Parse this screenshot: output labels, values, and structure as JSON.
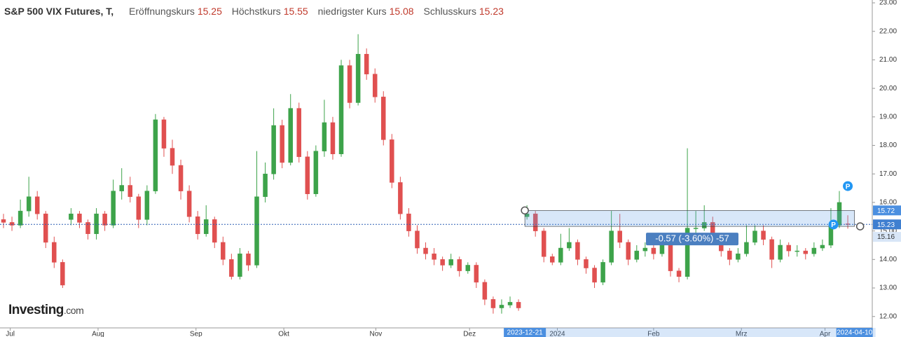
{
  "chart_data": {
    "type": "candlestick",
    "title": "S&P 500 VIX Futures, T,",
    "open_label": "Eröffnungskurs",
    "high_label": "Höchstkurs",
    "low_label": "niedrigster Kurs",
    "close_label": "Schlusskurs",
    "ylim": [
      11.6,
      23.05
    ],
    "yticks": [
      {
        "value": 12,
        "label": "12.00"
      },
      {
        "value": 13,
        "label": "13.00"
      },
      {
        "value": 14,
        "label": "14.00"
      },
      {
        "value": 15,
        "label": "15.00"
      },
      {
        "value": 16,
        "label": "16.00"
      },
      {
        "value": 17,
        "label": "17.00"
      },
      {
        "value": 18,
        "label": "18.00"
      },
      {
        "value": 19,
        "label": "19.00"
      },
      {
        "value": 20,
        "label": "20.00"
      },
      {
        "value": 21,
        "label": "21.00"
      },
      {
        "value": 22,
        "label": "22.00"
      },
      {
        "value": 23,
        "label": "23.00"
      }
    ],
    "xlim": [
      -0.415,
      102.9
    ],
    "xticks": [
      {
        "value": 0.8,
        "label": "Jul"
      },
      {
        "value": 11.2,
        "label": "Aug"
      },
      {
        "value": 22.8,
        "label": "Sep"
      },
      {
        "value": 33.2,
        "label": "Okt"
      },
      {
        "value": 44.1,
        "label": "Nov"
      },
      {
        "value": 55.2,
        "label": "Dez"
      },
      {
        "value": 65.6,
        "label": "2024"
      },
      {
        "value": 77,
        "label": "Feb"
      },
      {
        "value": 87.4,
        "label": "Mrz"
      },
      {
        "value": 97.3,
        "label": "Apr"
      }
    ],
    "up_color": "#3da34a",
    "down_color": "#e05050",
    "series": [
      {
        "values": [
          [
            15.4,
            15.6,
            15.1,
            15.3
          ],
          [
            15.3,
            15.5,
            15.0,
            15.2
          ],
          [
            15.2,
            16.1,
            15.1,
            15.7
          ],
          [
            15.7,
            16.9,
            15.5,
            16.2
          ],
          [
            16.2,
            16.4,
            15.4,
            15.6
          ],
          [
            15.6,
            15.7,
            14.4,
            14.6
          ],
          [
            14.6,
            14.8,
            13.7,
            13.9
          ],
          [
            13.9,
            14.0,
            13.0,
            13.1
          ],
          [
            15.4,
            15.8,
            15.2,
            15.6
          ],
          [
            15.6,
            15.7,
            15.1,
            15.3
          ],
          [
            15.3,
            15.4,
            14.7,
            14.9
          ],
          [
            14.9,
            15.8,
            14.7,
            15.6
          ],
          [
            15.6,
            15.7,
            15.0,
            15.2
          ],
          [
            15.2,
            16.8,
            15.1,
            16.4
          ],
          [
            16.4,
            17.2,
            16.1,
            16.6
          ],
          [
            16.6,
            16.9,
            16.0,
            16.2
          ],
          [
            16.2,
            16.3,
            15.1,
            15.4
          ],
          [
            15.4,
            16.6,
            15.2,
            16.4
          ],
          [
            16.4,
            19.1,
            16.3,
            18.9
          ],
          [
            18.9,
            19.0,
            17.6,
            17.9
          ],
          [
            17.9,
            18.2,
            17.0,
            17.3
          ],
          [
            17.3,
            17.5,
            16.1,
            16.4
          ],
          [
            16.4,
            16.6,
            15.3,
            15.5
          ],
          [
            15.5,
            15.7,
            14.7,
            14.9
          ],
          [
            14.9,
            15.9,
            14.8,
            15.4
          ],
          [
            15.4,
            15.5,
            14.4,
            14.6
          ],
          [
            14.6,
            14.8,
            13.8,
            14.0
          ],
          [
            14.0,
            14.2,
            13.3,
            13.4
          ],
          [
            13.4,
            14.4,
            13.3,
            14.2
          ],
          [
            14.2,
            14.3,
            13.6,
            13.8
          ],
          [
            13.8,
            17.8,
            13.7,
            16.2
          ],
          [
            16.2,
            17.4,
            16.0,
            17.0
          ],
          [
            17.0,
            19.3,
            16.8,
            18.7
          ],
          [
            18.7,
            18.9,
            17.2,
            17.4
          ],
          [
            17.4,
            19.8,
            17.3,
            19.3
          ],
          [
            19.3,
            19.5,
            17.4,
            17.6
          ],
          [
            17.6,
            17.8,
            16.1,
            16.3
          ],
          [
            16.3,
            18.0,
            16.2,
            17.8
          ],
          [
            17.8,
            19.6,
            17.6,
            18.8
          ],
          [
            18.8,
            19.0,
            17.5,
            17.7
          ],
          [
            17.7,
            21.0,
            17.6,
            20.8
          ],
          [
            20.8,
            21.0,
            19.3,
            19.5
          ],
          [
            19.5,
            21.9,
            19.4,
            21.2
          ],
          [
            21.2,
            21.4,
            20.3,
            20.5
          ],
          [
            20.5,
            20.7,
            19.5,
            19.7
          ],
          [
            19.7,
            19.9,
            18.0,
            18.2
          ],
          [
            18.2,
            18.4,
            16.5,
            16.7
          ],
          [
            16.7,
            16.9,
            15.4,
            15.6
          ],
          [
            15.6,
            15.8,
            14.8,
            15.0
          ],
          [
            15.0,
            15.2,
            14.2,
            14.4
          ],
          [
            14.4,
            14.6,
            14.0,
            14.2
          ],
          [
            14.2,
            14.4,
            13.8,
            14.0
          ],
          [
            14.0,
            14.1,
            13.6,
            13.8
          ],
          [
            13.8,
            14.2,
            13.7,
            14.0
          ],
          [
            14.0,
            14.1,
            13.4,
            13.6
          ],
          [
            13.6,
            13.9,
            13.5,
            13.8
          ],
          [
            13.8,
            13.9,
            13.0,
            13.2
          ],
          [
            13.2,
            13.3,
            12.4,
            12.6
          ],
          [
            12.6,
            12.7,
            12.1,
            12.3
          ],
          [
            12.3,
            12.6,
            12.1,
            12.4
          ],
          [
            12.4,
            12.7,
            12.3,
            12.5
          ],
          [
            12.5,
            12.6,
            12.2,
            12.3
          ],
          [
            15.5,
            15.9,
            15.4,
            15.6
          ],
          [
            15.6,
            15.7,
            14.8,
            15.0
          ],
          [
            15.0,
            15.1,
            13.9,
            14.1
          ],
          [
            14.1,
            14.2,
            13.8,
            13.9
          ],
          [
            13.9,
            14.9,
            13.8,
            14.4
          ],
          [
            14.4,
            15.1,
            14.3,
            14.6
          ],
          [
            14.6,
            14.7,
            13.8,
            14.0
          ],
          [
            14.0,
            14.1,
            13.5,
            13.7
          ],
          [
            13.7,
            13.8,
            13.0,
            13.2
          ],
          [
            13.2,
            14.0,
            13.1,
            13.9
          ],
          [
            13.9,
            15.7,
            13.8,
            15.0
          ],
          [
            15.0,
            15.6,
            14.4,
            14.6
          ],
          [
            14.6,
            14.7,
            13.8,
            14.0
          ],
          [
            14.0,
            14.5,
            13.9,
            14.3
          ],
          [
            14.3,
            14.6,
            14.1,
            14.4
          ],
          [
            14.4,
            14.5,
            14.0,
            14.2
          ],
          [
            14.2,
            14.8,
            14.1,
            14.6
          ],
          [
            14.6,
            14.7,
            13.4,
            13.6
          ],
          [
            13.6,
            13.7,
            13.2,
            13.4
          ],
          [
            13.4,
            17.9,
            13.3,
            15.1
          ],
          [
            15.1,
            15.7,
            14.9,
            15.1
          ],
          [
            15.1,
            15.9,
            15.0,
            15.3
          ],
          [
            15.3,
            15.5,
            14.6,
            14.8
          ],
          [
            14.8,
            14.9,
            14.1,
            14.3
          ],
          [
            14.3,
            14.4,
            13.8,
            14.0
          ],
          [
            14.0,
            14.4,
            13.9,
            14.2
          ],
          [
            14.2,
            15.2,
            14.1,
            14.6
          ],
          [
            14.6,
            15.2,
            14.5,
            15.0
          ],
          [
            15.0,
            15.2,
            14.5,
            14.7
          ],
          [
            14.7,
            14.8,
            13.7,
            14.0
          ],
          [
            14.0,
            14.7,
            13.9,
            14.5
          ],
          [
            14.5,
            14.6,
            14.1,
            14.3
          ],
          [
            14.3,
            14.5,
            14.1,
            14.3
          ],
          [
            14.3,
            14.4,
            14.0,
            14.2
          ],
          [
            14.2,
            14.6,
            14.1,
            14.4
          ],
          [
            14.4,
            14.7,
            14.3,
            14.5
          ],
          [
            14.5,
            15.8,
            14.4,
            15.2
          ],
          [
            15.2,
            16.4,
            15.1,
            16.0
          ],
          [
            15.25,
            15.55,
            15.08,
            15.23
          ]
        ]
      }
    ],
    "measure": {
      "top": 15.72,
      "bottom": 15.16,
      "label": "-0.57 (-3.60%) -57",
      "start_label": "2023-12-21",
      "end_label": "2024-04-10"
    },
    "logo": "Investing",
    "logo_suffix": ".com"
  }
}
